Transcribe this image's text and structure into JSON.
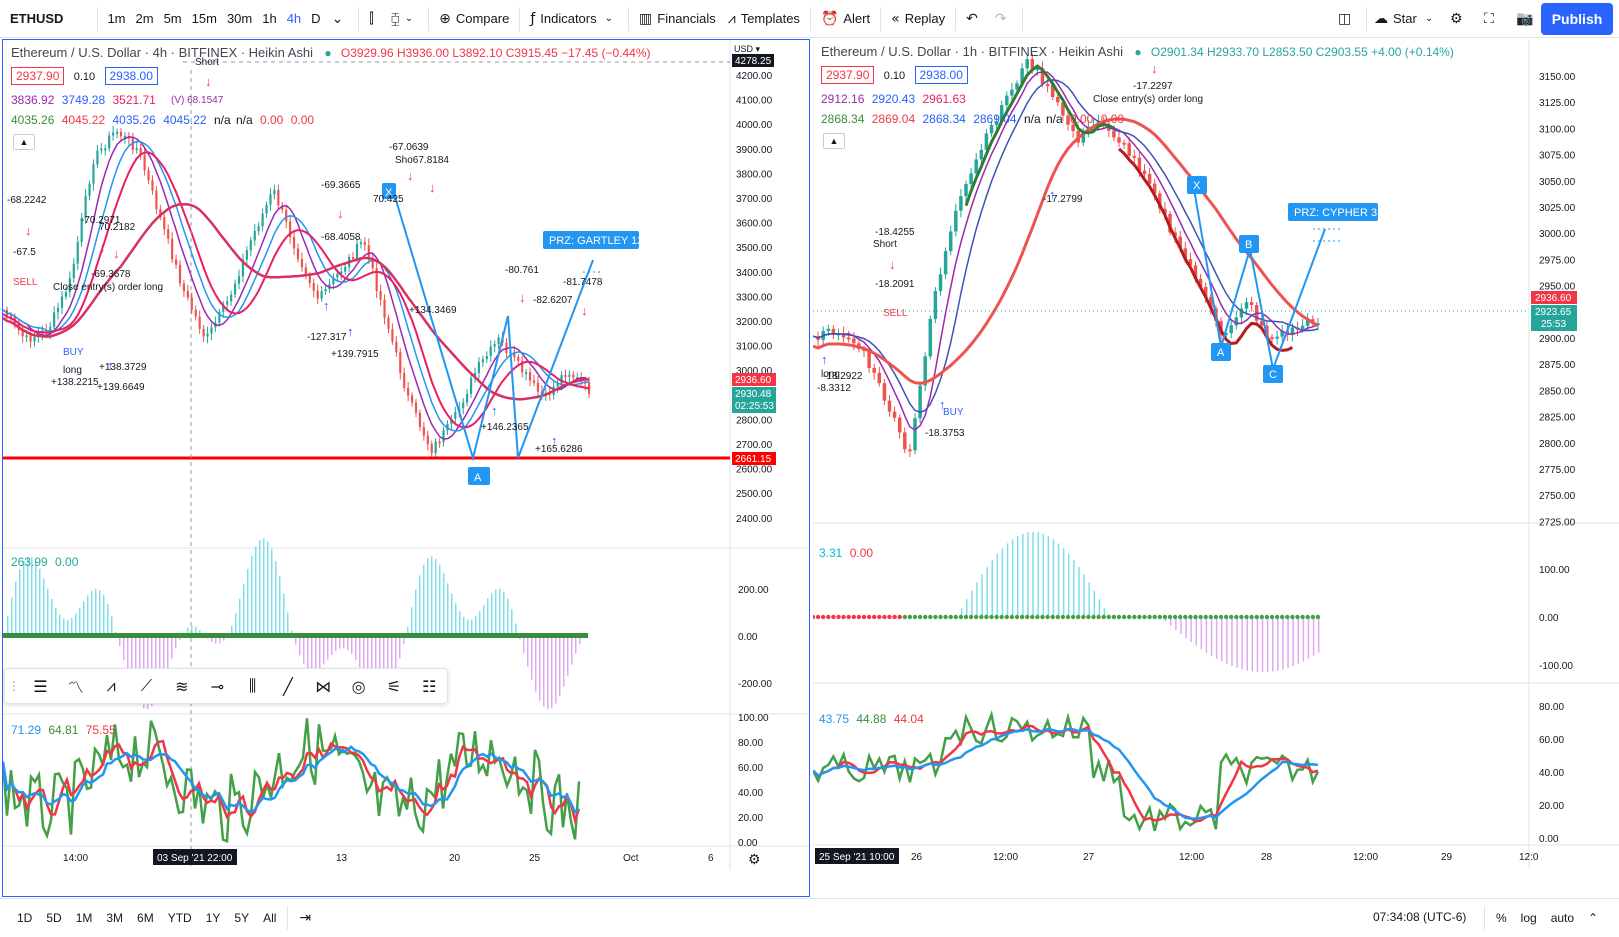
{
  "toolbar": {
    "symbol": "ETHUSD",
    "timeframes": [
      "1m",
      "2m",
      "5m",
      "15m",
      "30m",
      "1h",
      "4h",
      "D"
    ],
    "active_timeframe": "4h",
    "compare": "Compare",
    "indicators": "Indicators",
    "financials": "Financials",
    "templates": "Templates",
    "alert": "Alert",
    "replay": "Replay",
    "star": "Star",
    "publish": "Publish"
  },
  "left_chart": {
    "title": "Ethereum / U.S. Dollar · 4h · BITFINEX · Heikin Ashi",
    "ohlc": "O3929.96 H3936.00 L3892.10 C3915.45 −17.45 (−0.44%)",
    "bid": "2937.90",
    "spread": "0.10",
    "ask": "2938.00",
    "ma_line1": [
      "3836.92",
      "3749.28",
      "3521.71"
    ],
    "ma_line2": [
      "4035.26",
      "4045.22",
      "4035.26",
      "4045.22",
      "n/a",
      "n/a",
      "0.00",
      "0.00"
    ],
    "currency": "USD",
    "price_scale": [
      "4278.25",
      "4200.00",
      "4100.00",
      "4000.00",
      "3900.00",
      "3800.00",
      "3700.00",
      "3600.00",
      "3500.00",
      "3400.00",
      "3300.00",
      "3200.00",
      "3100.00",
      "3000.00",
      "2900.00",
      "2800.00",
      "2700.00",
      "2600.00",
      "2500.00",
      "2400.00"
    ],
    "last_price": "2936.60",
    "mid_price": "2930.48",
    "countdown": "02:25:53",
    "support_price": "2661.15",
    "prz_label": "PRZ: GARTLEY 12",
    "pattern_points": [
      "X",
      "A"
    ],
    "osc1_values": [
      "263.99",
      "0.00"
    ],
    "osc1_scale": [
      "200.00",
      "0.00",
      "-200.00"
    ],
    "osc2_values": [
      "71.29",
      "64.81",
      "75.55"
    ],
    "osc2_scale": [
      "100.00",
      "80.00",
      "60.00",
      "40.00",
      "20.00",
      "0.00"
    ],
    "time_axis": [
      "14:00",
      "13",
      "20",
      "25",
      "Oct",
      "6"
    ],
    "crosshair_time": "03 Sep '21  22:00",
    "annotations": [
      {
        "t": "Short",
        "c": "#131722"
      },
      {
        "t": "(V) 68.1547",
        "c": "#9c27b0"
      },
      {
        "t": "-68.2242",
        "c": "#131722"
      },
      {
        "t": "-67.5",
        "c": "#131722"
      },
      {
        "t": "-70.2971",
        "c": "#131722"
      },
      {
        "t": "70.2182",
        "c": "#131722"
      },
      {
        "t": "-69.3678",
        "c": "#131722"
      },
      {
        "t": "Close entry(s) order long",
        "c": "#131722"
      },
      {
        "t": "SELL",
        "c": "#f23645"
      },
      {
        "t": "BUY",
        "c": "#2962ff"
      },
      {
        "t": "+138.2215",
        "c": "#131722"
      },
      {
        "t": "+139.6649",
        "c": "#131722"
      },
      {
        "t": "+138.3729",
        "c": "#131722"
      },
      {
        "t": "-67.0639",
        "c": "#131722"
      },
      {
        "t": "Sho67.8184",
        "c": "#131722"
      },
      {
        "t": "-69.3665",
        "c": "#131722"
      },
      {
        "t": "70.425",
        "c": "#131722"
      },
      {
        "t": "-68.4058",
        "c": "#131722"
      },
      {
        "t": "+134.3469",
        "c": "#131722"
      },
      {
        "t": "-127.317",
        "c": "#131722"
      },
      {
        "t": "+139.7915",
        "c": "#131722"
      },
      {
        "t": "-80.761",
        "c": "#131722"
      },
      {
        "t": "-81.7478",
        "c": "#131722"
      },
      {
        "t": "-82.6207",
        "c": "#131722"
      },
      {
        "t": "+146.2365",
        "c": "#131722"
      },
      {
        "t": "+165.6286",
        "c": "#131722"
      },
      {
        "t": "long",
        "c": "#131722"
      }
    ]
  },
  "right_chart": {
    "title": "Ethereum / U.S. Dollar · 1h · BITFINEX · Heikin Ashi",
    "ohlc": "O2901.34 H2933.70 L2853.50 C2903.55 +4.00 (+0.14%)",
    "bid": "2937.90",
    "spread": "0.10",
    "ask": "2938.00",
    "ma_line1": [
      "2912.16",
      "2920.43",
      "2961.63"
    ],
    "ma_line2": [
      "2868.34",
      "2869.04",
      "2868.34",
      "2869.04",
      "n/a",
      "n/a",
      "0.00",
      "0.00"
    ],
    "price_scale": [
      "3150.00",
      "3125.00",
      "3100.00",
      "3075.00",
      "3050.00",
      "3025.00",
      "3000.00",
      "2975.00",
      "2950.00",
      "2925.00",
      "2900.00",
      "2875.00",
      "2850.00",
      "2825.00",
      "2800.00",
      "2775.00",
      "2750.00",
      "2725.00"
    ],
    "last_price": "2936.60",
    "mid_price": "2923.65",
    "countdown": "25:53",
    "prz_label": "PRZ: CYPHER 3",
    "pattern_points": [
      "X",
      "A",
      "B",
      "C"
    ],
    "osc1_values": [
      "3.31",
      "0.00"
    ],
    "osc1_scale": [
      "100.00",
      "0.00",
      "-100.00"
    ],
    "osc2_values": [
      "43.75",
      "44.88",
      "44.04"
    ],
    "osc2_scale": [
      "80.00",
      "60.00",
      "40.00",
      "20.00",
      "0.00"
    ],
    "time_axis": [
      "26",
      "12:00",
      "27",
      "12:00",
      "28",
      "12:00",
      "29",
      "12:0"
    ],
    "crosshair_time": "25 Sep '21  10:00",
    "annotations": [
      {
        "t": "-17.2297",
        "c": "#131722"
      },
      {
        "t": "Close entry(s) order long",
        "c": "#131722"
      },
      {
        "t": "-18.4255",
        "c": "#131722"
      },
      {
        "t": "Short",
        "c": "#131722"
      },
      {
        "t": "-18.2091",
        "c": "#131722"
      },
      {
        "t": "-17.2799",
        "c": "#131722"
      },
      {
        "t": "-18.2922",
        "c": "#131722"
      },
      {
        "t": "-8.3312",
        "c": "#131722"
      },
      {
        "t": "-18.3753",
        "c": "#131722"
      },
      {
        "t": "SELL",
        "c": "#f23645"
      },
      {
        "t": "BUY",
        "c": "#2962ff"
      },
      {
        "t": "long",
        "c": "#131722"
      }
    ]
  },
  "bottom": {
    "ranges": [
      "1D",
      "5D",
      "1M",
      "3M",
      "6M",
      "YTD",
      "1Y",
      "5Y",
      "All"
    ],
    "clock": "07:34:08 (UTC-6)",
    "percent": "%",
    "log": "log",
    "auto": "auto"
  },
  "colors": {
    "bull": "#26a69a",
    "bear": "#ef5350",
    "accent": "#2962ff",
    "support": "#ff0000"
  }
}
